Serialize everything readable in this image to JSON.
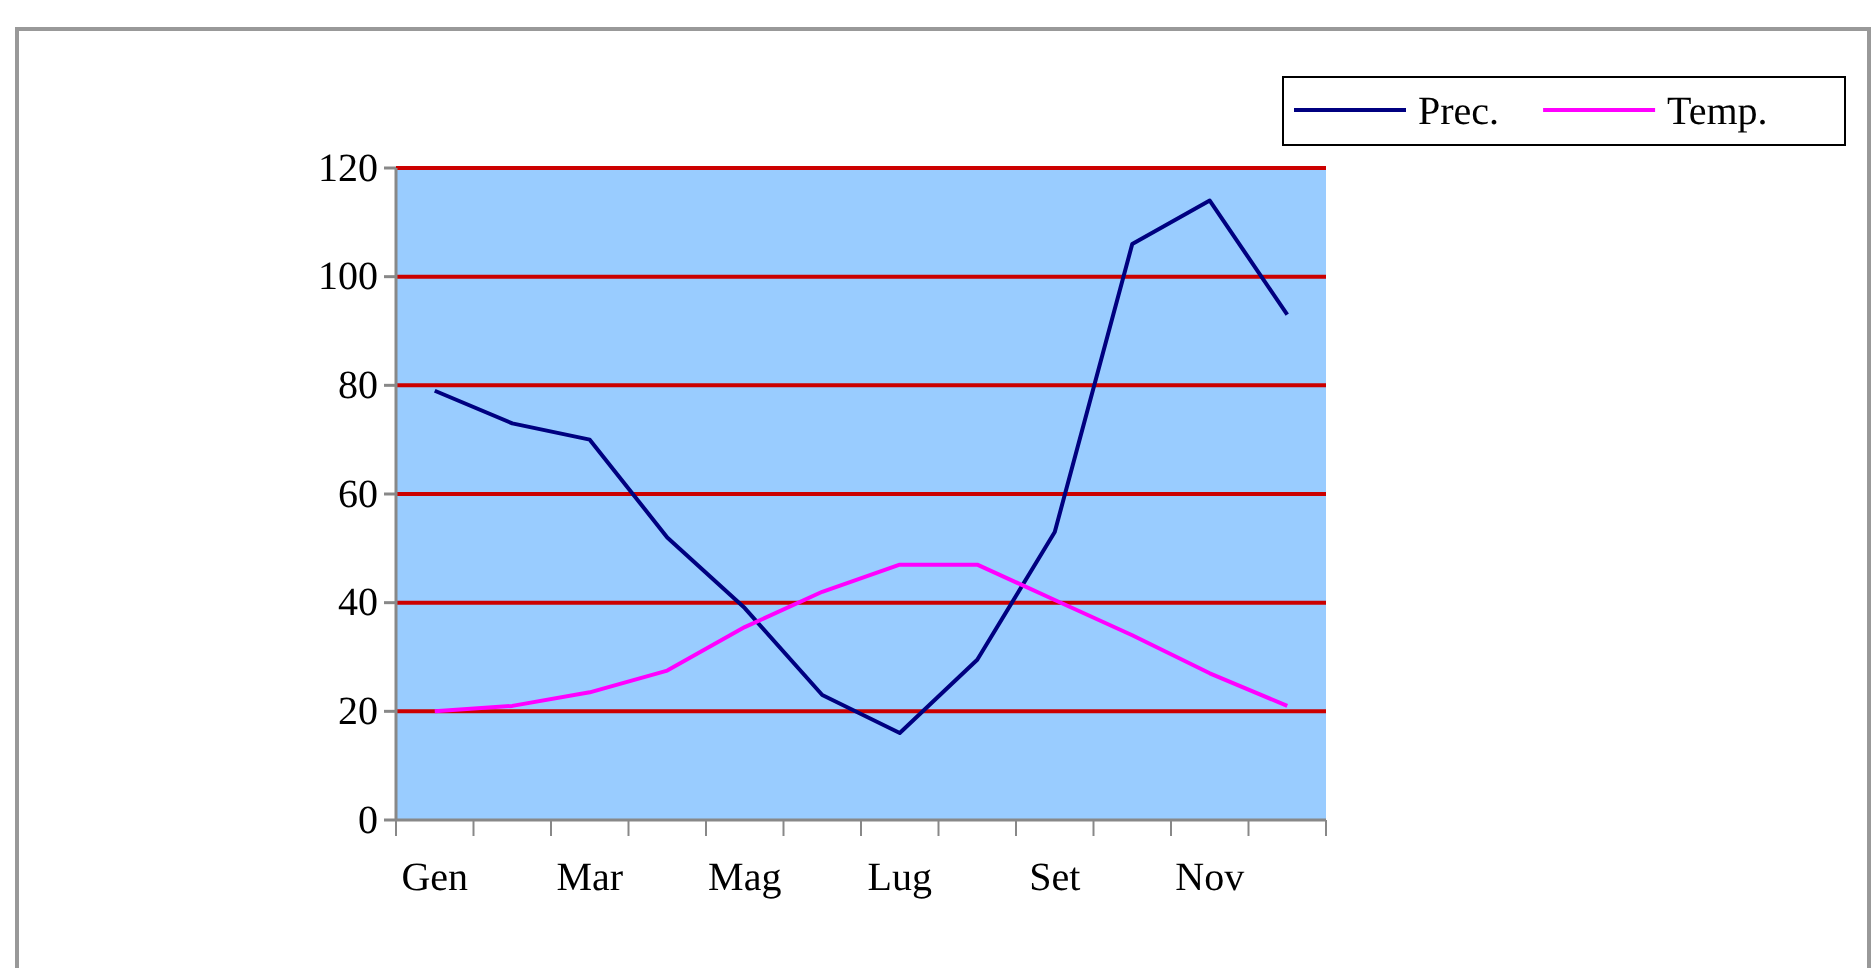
{
  "chart_data": {
    "type": "line",
    "categories": [
      "Gen",
      null,
      "Mar",
      null,
      "Mag",
      null,
      "Lug",
      null,
      "Set",
      null,
      "Nov",
      null
    ],
    "series": [
      {
        "name": "Prec.",
        "color": "#000080",
        "values": [
          79,
          73,
          70,
          52,
          39,
          23,
          16,
          29.5,
          53,
          106,
          114,
          93
        ]
      },
      {
        "name": "Temp.",
        "color": "#ff00ff",
        "values": [
          20,
          21,
          23.5,
          27.5,
          35.5,
          42,
          47,
          47,
          40.5,
          34,
          27,
          21
        ]
      }
    ],
    "ylim": [
      0,
      120
    ],
    "yticks": [
      0,
      20,
      40,
      60,
      80,
      100,
      120
    ],
    "grid": "y",
    "legend": "top right",
    "marker": "none",
    "line_style": "solid"
  }
}
